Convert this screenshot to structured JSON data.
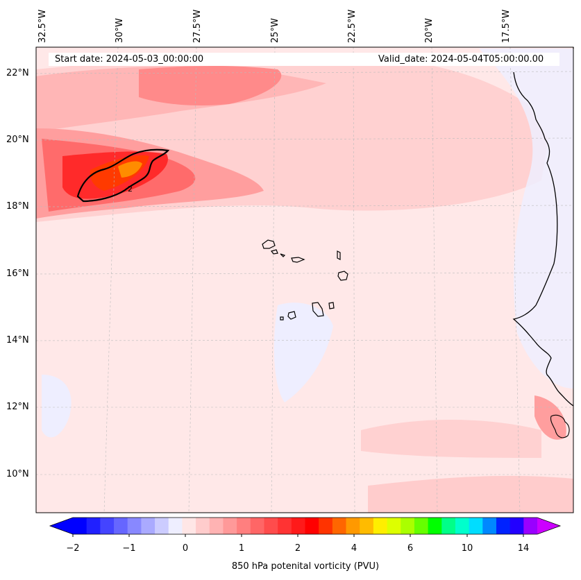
{
  "header": {
    "start_date": "Start date: 2024-05-03_00:00:00",
    "valid_date": "Valid_date: 2024-05-04T05:00:00.00"
  },
  "axes": {
    "lon_labels": [
      "32.5°W",
      "30°W",
      "27.5°W",
      "25°W",
      "22.5°W",
      "20°W",
      "17.5°W"
    ],
    "lat_labels": [
      "22°N",
      "20°N",
      "18°N",
      "16°N",
      "14°N",
      "12°N",
      "10°N"
    ]
  },
  "contour_label": "2",
  "colorbar": {
    "title": "850 hPa potenital vorticity (PVU)",
    "tick_labels": [
      "−2",
      "−1",
      "0",
      "1",
      "2",
      "4",
      "6",
      "10",
      "14"
    ],
    "colors": [
      "#0000ff",
      "#2020ff",
      "#4444ff",
      "#6666ff",
      "#8888ff",
      "#aaaaff",
      "#ccccff",
      "#eeeeff",
      "#ffe6e6",
      "#ffcccc",
      "#ffb3b3",
      "#ff9999",
      "#ff7f7f",
      "#ff6666",
      "#ff4c4c",
      "#ff3333",
      "#ff1a1a",
      "#ff0000",
      "#ff3300",
      "#ff6600",
      "#ff9900",
      "#ffbb00",
      "#ffee00",
      "#ddff00",
      "#aaff00",
      "#66ff00",
      "#00ff00",
      "#00ff88",
      "#00ffcc",
      "#00ddff",
      "#0088ff",
      "#0022ff",
      "#2200ff",
      "#9900ff"
    ],
    "extend_low": "#0000ff",
    "extend_high": "#cc00ff"
  },
  "colors": {
    "background_field": "#ffe8e8",
    "coast": "#000000"
  }
}
